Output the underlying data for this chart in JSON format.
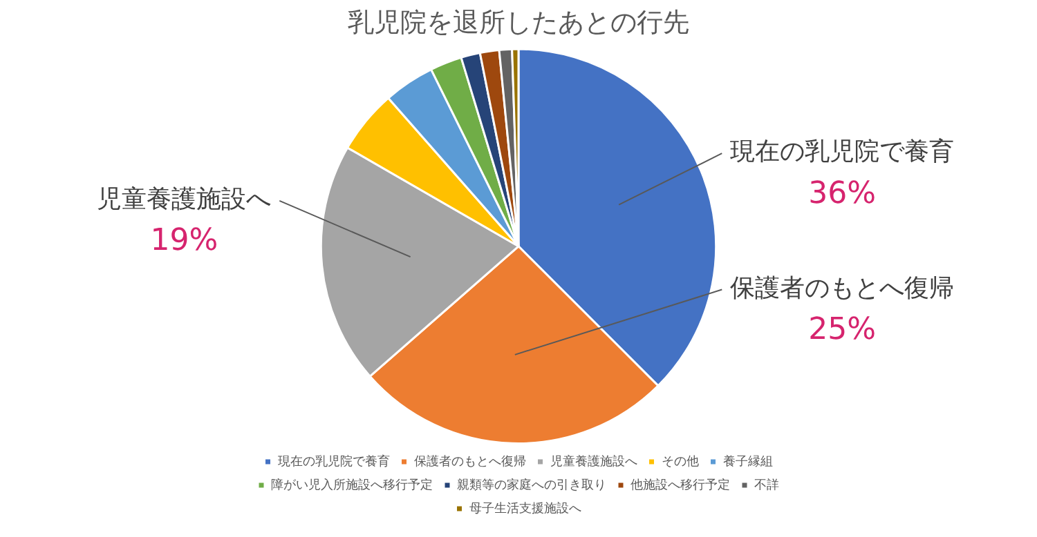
{
  "chart_data": {
    "type": "pie",
    "title": "乳児院を退所したあとの行先",
    "categories": [
      "現在の乳児院で養育",
      "保護者のもとへ復帰",
      "児童養護施設へ",
      "その他",
      "養子縁組",
      "障がい児入所施設へ移行予定",
      "親類等の家庭への引き取り",
      "他施設へ移行予定",
      "不詳",
      "母子生活支援施設へ"
    ],
    "values": [
      36,
      25,
      19,
      5,
      4,
      2.5,
      1.5,
      1.5,
      1,
      0.5
    ],
    "value_labels": [
      "36%",
      "25%",
      "19%",
      null,
      null,
      null,
      null,
      null,
      null,
      null
    ],
    "colors": [
      "#4472c4",
      "#ed7d31",
      "#a5a5a5",
      "#ffc000",
      "#5b9bd5",
      "#70ad47",
      "#264478",
      "#9e480e",
      "#636363",
      "#997300"
    ],
    "legend": "bottom"
  }
}
